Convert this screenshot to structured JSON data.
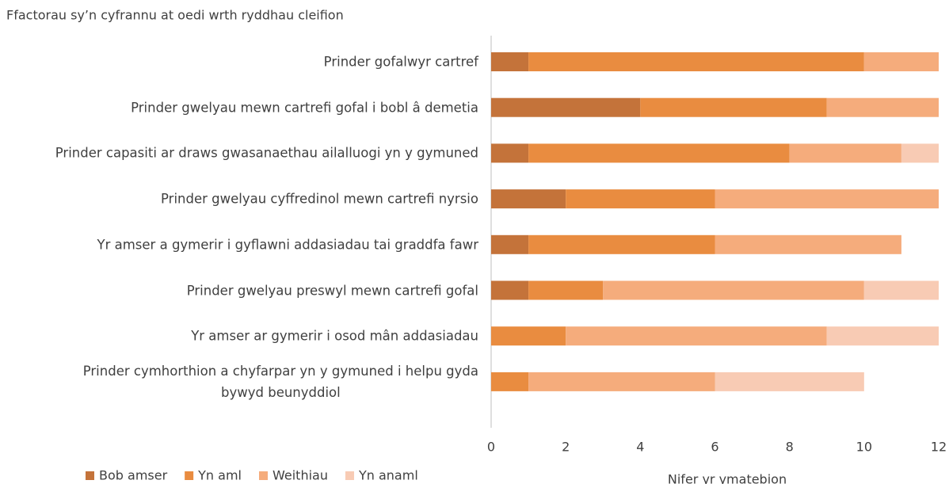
{
  "chart_data": {
    "type": "stacked-barh",
    "title": "Ffactorau sy’n cyfrannu at oedi wrth ryddhau cleifion",
    "xlabel": "Nifer yr ymatebion",
    "categories": [
      "Prinder gofalwyr cartref",
      "Prinder gwelyau mewn cartrefi gofal i bobl â demetia",
      "Prinder capasiti ar draws gwasanaethau ailalluogi yn y gymuned",
      "Prinder gwelyau cyffredinol mewn cartrefi nyrsio",
      "Yr amser a gymerir i gyflawni addasiadau tai graddfa fawr",
      "Prinder gwelyau preswyl mewn cartrefi gofal",
      "Yr amser ar gymerir i osod mân addasiadau",
      "Prinder cymhorthion a chyfarpar yn y gymuned i helpu gyda\nbywyd beunyddiol"
    ],
    "series": [
      {
        "name": "Bob amser",
        "color": "#c4733a",
        "values": [
          1,
          4,
          1,
          2,
          1,
          1,
          0,
          0
        ]
      },
      {
        "name": "Yn aml",
        "color": "#e98c40",
        "values": [
          9,
          5,
          7,
          4,
          5,
          2,
          2,
          1
        ]
      },
      {
        "name": "Weithiau",
        "color": "#f5ac7c",
        "values": [
          2,
          3,
          3,
          6,
          5,
          7,
          7,
          5
        ]
      },
      {
        "name": "Yn anaml",
        "color": "#f8cbb4",
        "values": [
          0,
          0,
          1,
          0,
          0,
          2,
          3,
          4
        ]
      }
    ],
    "xlim": [
      0,
      12
    ],
    "xticks": [
      0,
      2,
      4,
      6,
      8,
      10,
      12
    ],
    "grid": false,
    "legend": "bottom-left"
  }
}
